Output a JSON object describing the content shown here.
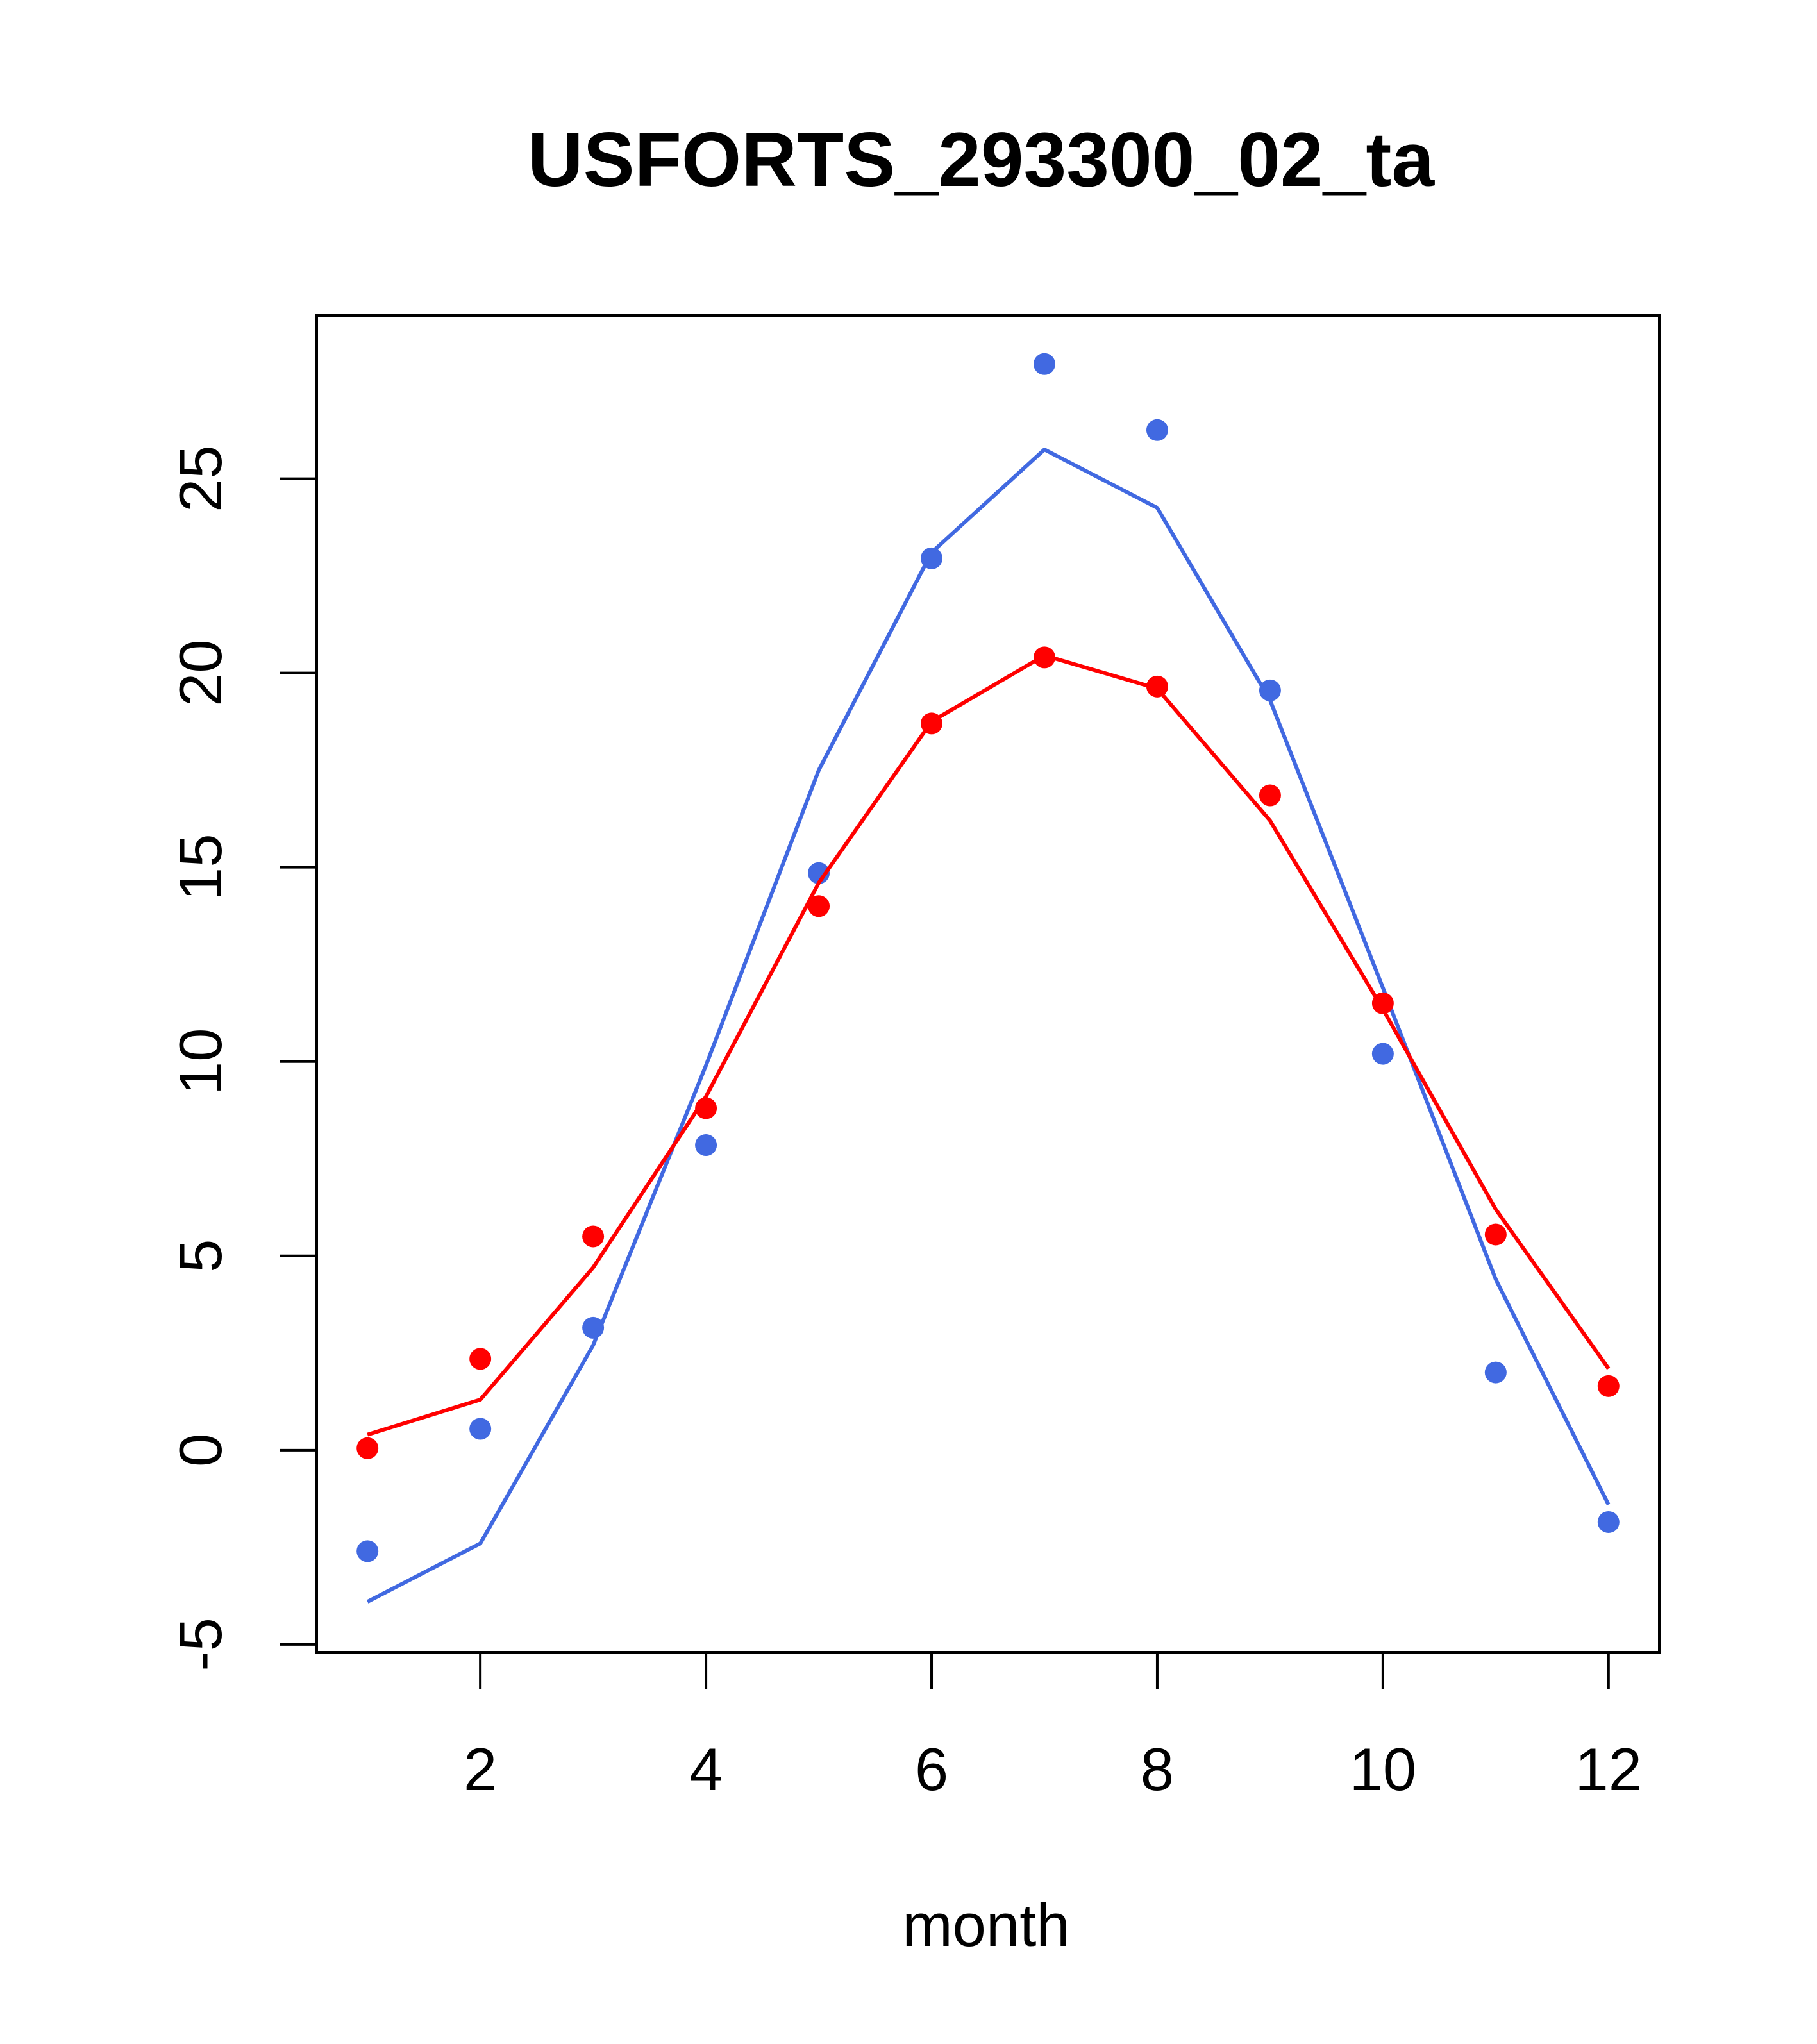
{
  "chart_data": {
    "type": "line",
    "title": "USFORTS_293300_02_ta",
    "xlabel": "month",
    "ylabel": "",
    "xlim": [
      0.55,
      12.45
    ],
    "ylim": [
      -5.2,
      29.2
    ],
    "x_ticks": [
      2,
      4,
      6,
      8,
      10,
      12
    ],
    "x_tick_labels": [
      "2",
      "4",
      "6",
      "8",
      "10",
      "12"
    ],
    "y_ticks": [
      -5,
      0,
      5,
      10,
      15,
      20,
      25
    ],
    "y_tick_labels": [
      "-5",
      "0",
      "5",
      "10",
      "15",
      "20",
      "25"
    ],
    "grid": false,
    "legend": "none",
    "series": [
      {
        "color": "#4169E1",
        "points_x": [
          1,
          2,
          3,
          4,
          5,
          6,
          7,
          8,
          9,
          10,
          11,
          12
        ],
        "points_y": [
          -2.6,
          0.55,
          3.15,
          7.85,
          14.85,
          22.95,
          27.95,
          26.25,
          19.55,
          10.2,
          2.0,
          -1.85
        ],
        "line_x": [
          1,
          2,
          3,
          4,
          5,
          6,
          7,
          8,
          9,
          10,
          11,
          12
        ],
        "line_y": [
          -3.9,
          -2.4,
          2.7,
          9.9,
          17.5,
          23.1,
          25.75,
          24.25,
          19.3,
          11.9,
          4.4,
          -1.4
        ]
      },
      {
        "color": "#FF0000",
        "points_x": [
          1,
          2,
          3,
          4,
          5,
          6,
          7,
          8,
          9,
          10,
          11,
          12
        ],
        "points_y": [
          0.05,
          2.35,
          5.5,
          8.8,
          14.0,
          18.7,
          20.4,
          19.65,
          16.85,
          11.5,
          5.55,
          1.65
        ],
        "line_x": [
          1,
          2,
          3,
          4,
          5,
          6,
          7,
          8,
          9,
          10,
          11,
          12
        ],
        "line_y": [
          0.4,
          1.3,
          4.7,
          9.1,
          14.6,
          18.75,
          20.45,
          19.6,
          16.2,
          11.35,
          6.2,
          2.1
        ]
      }
    ]
  }
}
